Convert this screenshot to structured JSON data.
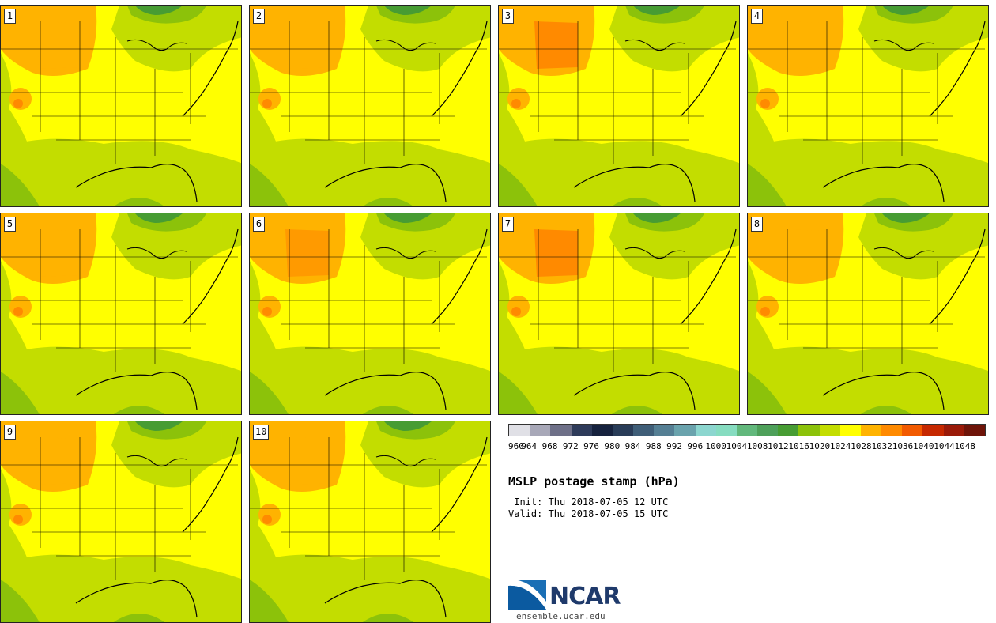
{
  "product": {
    "title": "MSLP postage stamp (hPa)",
    "init_line": " Init: Thu 2018-07-05 12 UTC",
    "valid_line": "Valid: Thu 2018-07-05 15 UTC"
  },
  "members": [
    {
      "label": "1",
      "high_center_color": "#ffb300"
    },
    {
      "label": "2",
      "high_center_color": "#ffb300"
    },
    {
      "label": "3",
      "high_center_color": "#ff8a00"
    },
    {
      "label": "4",
      "high_center_color": "#ffb300"
    },
    {
      "label": "5",
      "high_center_color": "#ffb300"
    },
    {
      "label": "6",
      "high_center_color": "#ff9a00"
    },
    {
      "label": "7",
      "high_center_color": "#ff8a00"
    },
    {
      "label": "8",
      "high_center_color": "#ffb300"
    },
    {
      "label": "9",
      "high_center_color": "#ffb300"
    },
    {
      "label": "10",
      "high_center_color": "#ffb300"
    }
  ],
  "colorbar": {
    "unit": "hPa",
    "tick_labels": [
      "960",
      "964",
      "968",
      "972",
      "976",
      "980",
      "984",
      "988",
      "992",
      "996",
      "1000",
      "1004",
      "1008",
      "1012",
      "1016",
      "1020",
      "1024",
      "1028",
      "1032",
      "1036",
      "1040",
      "1044",
      "1048"
    ],
    "colors": [
      "#e0e0e6",
      "#a8a8b8",
      "#6e7088",
      "#2e3b5a",
      "#16223e",
      "#293c58",
      "#3f5e78",
      "#557f94",
      "#6aa3ad",
      "#8cd6cf",
      "#86dcc0",
      "#62b87c",
      "#4ea05a",
      "#479c33",
      "#8cc20a",
      "#c3dd00",
      "#ffff00",
      "#ffb300",
      "#ff8a00",
      "#f25a00",
      "#c62800",
      "#9a1a08",
      "#6e1408"
    ]
  },
  "logo": {
    "name": "NCAR",
    "url": "ensemble.ucar.edu"
  }
}
